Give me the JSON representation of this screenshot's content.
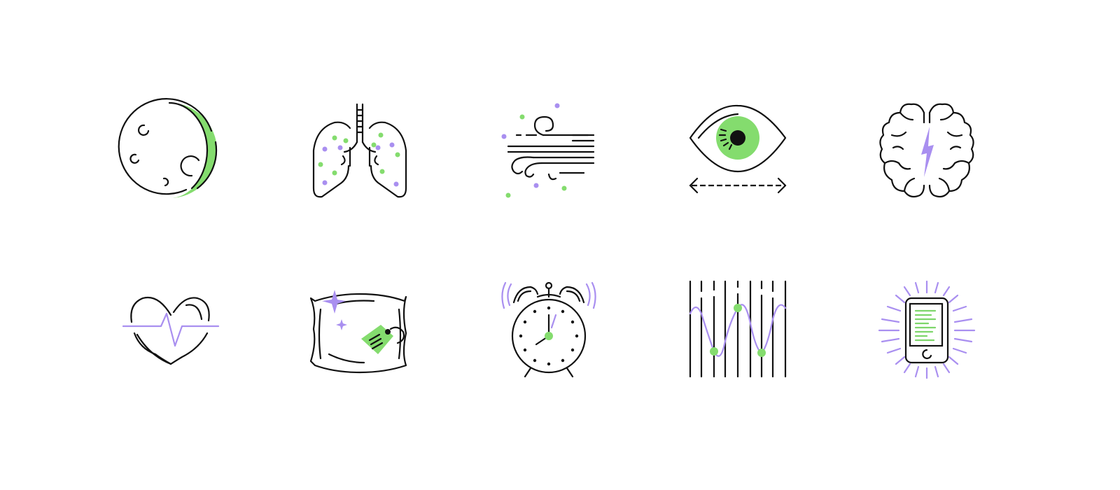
{
  "palette": {
    "line": "#111111",
    "accent_green": "#84dc6e",
    "accent_purple": "#a98ff0",
    "background": "#ffffff"
  },
  "icons": [
    {
      "row": 1,
      "col": 1,
      "name": "crescent-moon-icon"
    },
    {
      "row": 1,
      "col": 2,
      "name": "lungs-icon"
    },
    {
      "row": 1,
      "col": 3,
      "name": "wind-icon"
    },
    {
      "row": 1,
      "col": 4,
      "name": "eye-movement-icon"
    },
    {
      "row": 1,
      "col": 5,
      "name": "brain-lightning-icon"
    },
    {
      "row": 2,
      "col": 1,
      "name": "heartbeat-icon"
    },
    {
      "row": 2,
      "col": 2,
      "name": "pillow-tag-icon"
    },
    {
      "row": 2,
      "col": 3,
      "name": "alarm-clock-icon"
    },
    {
      "row": 2,
      "col": 4,
      "name": "sleep-wave-icon"
    },
    {
      "row": 2,
      "col": 5,
      "name": "phone-glow-icon"
    }
  ]
}
